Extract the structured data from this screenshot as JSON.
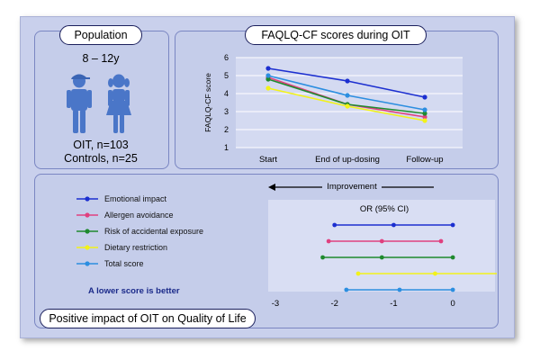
{
  "population": {
    "title": "Population",
    "age": "8 – 12y",
    "oit": "OIT, n=103",
    "controls": "Controls, n=25"
  },
  "faqlq": {
    "title": "FAQLQ-CF scores during OIT"
  },
  "forest": {
    "improvement_label": "Improvement",
    "note": "A lower score is better",
    "bottom_title": "Positive impact of OIT on Quality of Life"
  },
  "chart_data": [
    {
      "type": "line",
      "ylabel": "FAQLQ-CF score",
      "categories": [
        "Start",
        "End of up-dosing",
        "Follow-up"
      ],
      "ylim": [
        1,
        6
      ],
      "yticks": [
        "1",
        "2",
        "3",
        "4",
        "5",
        "6"
      ],
      "grid": true,
      "series": [
        {
          "name": "Emotional impact",
          "color": "#1c2fd0",
          "values": [
            5.4,
            4.7,
            3.8
          ]
        },
        {
          "name": "Allergen avoidance",
          "color": "#e0407f",
          "values": [
            4.9,
            3.4,
            2.7
          ]
        },
        {
          "name": "Risk of accidental exposure",
          "color": "#1f8a2e",
          "values": [
            4.8,
            3.4,
            2.9
          ]
        },
        {
          "name": "Dietary restriction",
          "color": "#f2f21a",
          "values": [
            4.3,
            3.3,
            2.5
          ]
        },
        {
          "name": "Total score",
          "color": "#2c8ee0",
          "values": [
            5.0,
            3.9,
            3.1
          ]
        }
      ]
    },
    {
      "type": "scatter",
      "title": "OR (95% CI)",
      "xlim": [
        -3,
        0.5
      ],
      "xticks": [
        "-3",
        "-2",
        "-1",
        "0"
      ],
      "legend": "left",
      "series": [
        {
          "name": "Emotional impact",
          "color": "#1c2fd0",
          "point": -1.0,
          "ci": [
            -2.0,
            0.0
          ]
        },
        {
          "name": "Allergen avoidance",
          "color": "#e0407f",
          "point": -1.2,
          "ci": [
            -2.1,
            -0.2
          ]
        },
        {
          "name": "Risk of accidental exposure",
          "color": "#1f8a2e",
          "point": -1.2,
          "ci": [
            -2.2,
            0.0
          ]
        },
        {
          "name": "Dietary restriction",
          "color": "#f2f21a",
          "point": -0.3,
          "ci": [
            -1.6,
            0.8
          ]
        },
        {
          "name": "Total score",
          "color": "#2c8ee0",
          "point": -0.9,
          "ci": [
            -1.8,
            0.0
          ]
        }
      ]
    }
  ]
}
